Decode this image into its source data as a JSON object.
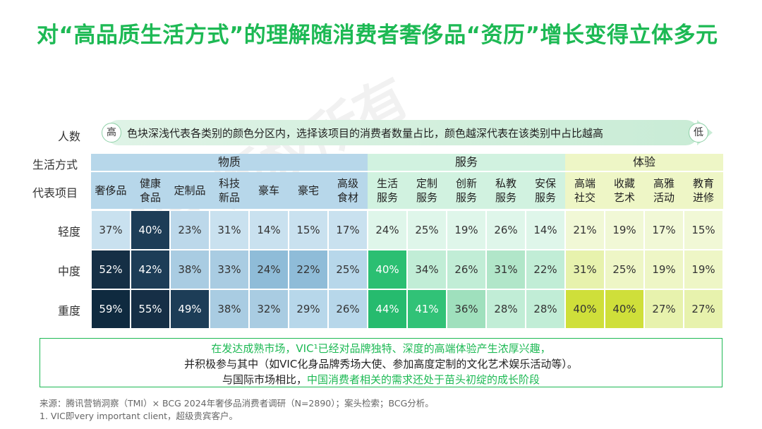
{
  "title": "对“高品质生活方式”的理解随消费者奢侈品“资历”增长变得立体多元",
  "watermark": "报告 版权所有",
  "labels": {
    "population": "人数",
    "lifestyle": "生活方式",
    "items": "代表项目"
  },
  "arrow": {
    "text": "色块深浅代表各类别的颜色分区内，选择该项目的消费者数量占比，颜色越深代表在该类别中占比越高",
    "high": "高",
    "low": "低"
  },
  "groups": [
    {
      "name": "物质",
      "color": "#b7d7ea",
      "dark": "#0f2a3f"
    },
    {
      "name": "服务",
      "color": "#d1f2e0",
      "dark": "#1fb86a"
    },
    {
      "name": "体验",
      "color": "#eef6c6",
      "dark": "#c9da2a"
    }
  ],
  "chart_data": {
    "type": "heatmap",
    "unit": "%",
    "rows": [
      "轻度",
      "中度",
      "重度"
    ],
    "columns": [
      {
        "group": "物质",
        "label": "奢侈品"
      },
      {
        "group": "物质",
        "label": "健康\n食品"
      },
      {
        "group": "物质",
        "label": "定制品"
      },
      {
        "group": "物质",
        "label": "科技\n新品"
      },
      {
        "group": "物质",
        "label": "豪车"
      },
      {
        "group": "物质",
        "label": "豪宅"
      },
      {
        "group": "物质",
        "label": "高级\n食材"
      },
      {
        "group": "服务",
        "label": "生活\n服务"
      },
      {
        "group": "服务",
        "label": "定制\n服务"
      },
      {
        "group": "服务",
        "label": "创新\n服务"
      },
      {
        "group": "服务",
        "label": "私教\n服务"
      },
      {
        "group": "服务",
        "label": "安保\n服务"
      },
      {
        "group": "体验",
        "label": "高端\n社交"
      },
      {
        "group": "体验",
        "label": "收藏\n艺术"
      },
      {
        "group": "体验",
        "label": "高雅\n活动"
      },
      {
        "group": "体验",
        "label": "教育\n进修"
      }
    ],
    "values": [
      [
        37,
        40,
        23,
        31,
        14,
        15,
        17,
        24,
        25,
        19,
        26,
        14,
        21,
        19,
        17,
        15
      ],
      [
        52,
        42,
        38,
        33,
        24,
        22,
        25,
        40,
        34,
        26,
        31,
        22,
        31,
        25,
        19,
        19
      ],
      [
        59,
        55,
        49,
        38,
        32,
        29,
        26,
        44,
        41,
        36,
        28,
        28,
        40,
        40,
        27,
        27
      ]
    ],
    "colors": [
      [
        "#c9e1ef",
        "#1d3d57",
        "#bcd8ea",
        "#c9e1ef",
        "#c9e1ef",
        "#c9e1ef",
        "#c9e1ef",
        "#dff6ea",
        "#dff6ea",
        "#dff6ea",
        "#dff6ea",
        "#dff6ea",
        "#f1f8d6",
        "#f1f8d6",
        "#f1f8d6",
        "#f1f8d6"
      ],
      [
        "#152f45",
        "#1d3d57",
        "#a9cce2",
        "#a9cce2",
        "#8fbcd8",
        "#8fbcd8",
        "#b7d7ea",
        "#2bbf72",
        "#c1edd6",
        "#c1edd6",
        "#b1e6c9",
        "#c1edd6",
        "#e7f2ad",
        "#eef6c6",
        "#eef6c6",
        "#eef6c6"
      ],
      [
        "#0f2a3f",
        "#162f46",
        "#1d3d57",
        "#a9cce2",
        "#a9cce2",
        "#b7d7ea",
        "#b7d7ea",
        "#26bb6e",
        "#31c277",
        "#9fe0bd",
        "#c1edd6",
        "#c1edd6",
        "#cfdf3a",
        "#cfdf3a",
        "#e7f2ad",
        "#e7f2ad"
      ]
    ]
  },
  "note": {
    "line1": "在发达成熟市场，VIC¹已经对品牌独特、深度的高端体验产生浓厚兴趣，",
    "line2": "并积极参与其中（如VIC化身品牌秀场大使、参加高度定制的文化艺术娱乐活动等）。",
    "line3_prefix": "与国际市场相比，",
    "line3_highlight": "中国消费者相关的需求还处于苗头初绽的成长阶段"
  },
  "source": "来源：腾讯营销洞察（TMI）× BCG 2024年奢侈品消费者调研（N=2890）；案头检索；BCG分析。",
  "footnote": "1. VIC即very important client，超级贵宾客户。"
}
